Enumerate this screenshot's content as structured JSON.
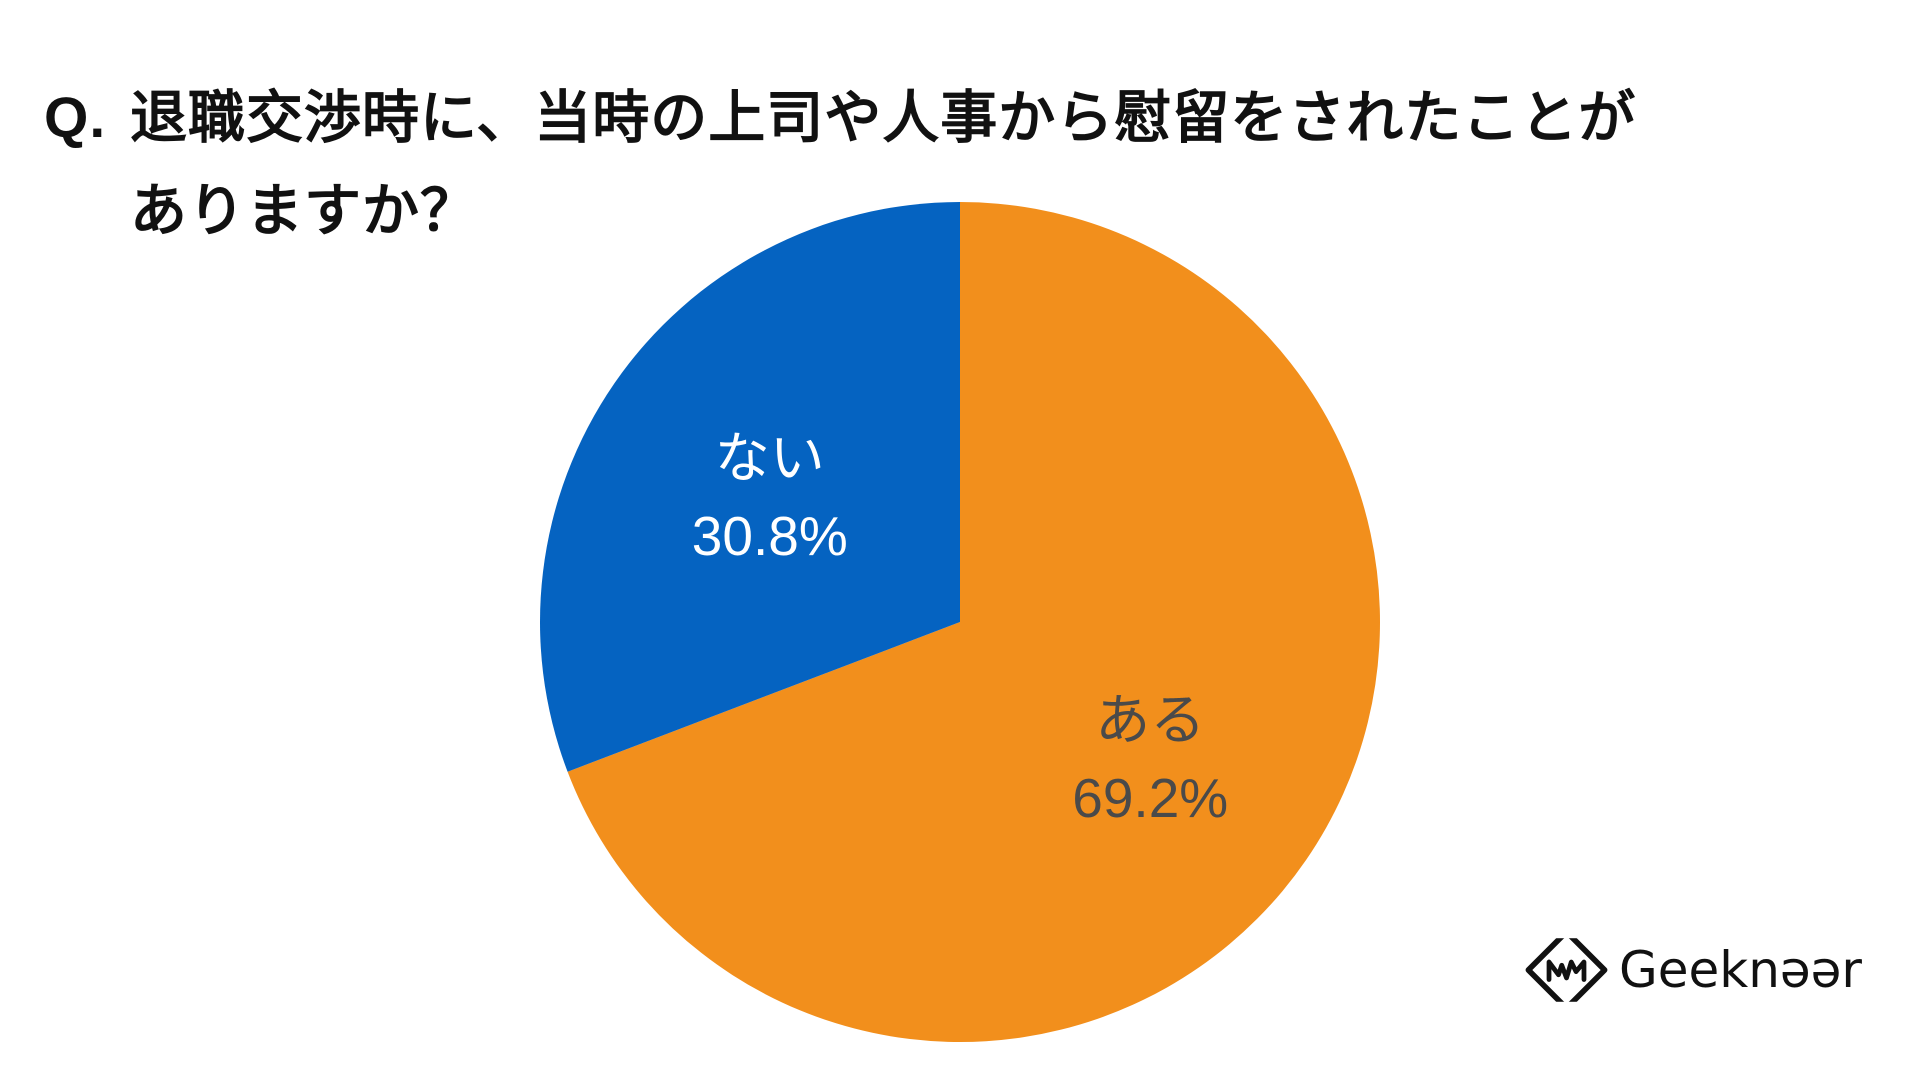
{
  "question": {
    "prefix": "Q.",
    "line1": "退職交渉時に、当時の上司や人事から慰留をされたことが",
    "line2": "ありますか？"
  },
  "chart_data": {
    "type": "pie",
    "start_angle_deg": 0,
    "direction": "clockwise",
    "slices": [
      {
        "label": "ある",
        "value": 69.2,
        "value_label": "69.2%",
        "color": "#F28F1C",
        "text_color": "#4A4A4A"
      },
      {
        "label": "ない",
        "value": 30.8,
        "value_label": "30.8%",
        "color": "#0563C1",
        "text_color": "#FFFFFF"
      }
    ]
  },
  "logo": {
    "name": "Geekneer",
    "text": "Geeknəər",
    "icon": "geekneer-logo-icon"
  }
}
